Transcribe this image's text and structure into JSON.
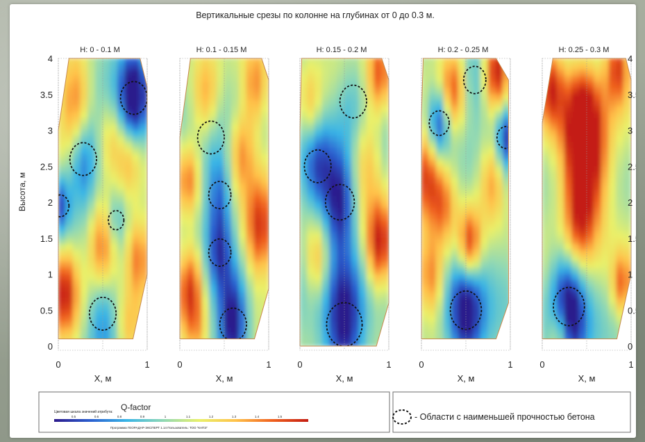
{
  "chart_data": {
    "type": "heatmap",
    "title": "Вертикальные срезы по колонне на глубинах от 0 до 0.3 м.",
    "xlabel": "X, м",
    "ylabel": "Высота, м",
    "xlim": [
      0,
      1
    ],
    "ylim": [
      0,
      4
    ],
    "x_ticks": [
      "0",
      "1"
    ],
    "y_ticks": [
      "0",
      "0.5",
      "1",
      "1.5",
      "2",
      "2.5",
      "3",
      "3.5",
      "4"
    ],
    "panels": [
      {
        "title": "H: 0 - 0.1 M",
        "anomalies": [
          {
            "x": 0.85,
            "y": 3.45,
            "v": -1.0,
            "r": 0.12
          },
          {
            "x": 0.28,
            "y": 2.6,
            "v": -0.7,
            "r": 0.12
          },
          {
            "x": 0.02,
            "y": 1.95,
            "v": -0.7,
            "r": 0.08
          },
          {
            "x": 0.5,
            "y": 0.45,
            "v": -0.5,
            "r": 0.12
          },
          {
            "x": 0.65,
            "y": 1.75,
            "v": -0.3,
            "r": 0.07
          },
          {
            "x": 0.2,
            "y": 3.35,
            "v": 0.75,
            "r": 0.13
          },
          {
            "x": 0.5,
            "y": 1.35,
            "v": 0.85,
            "r": 0.12
          },
          {
            "x": 0.08,
            "y": 0.75,
            "v": 0.85,
            "r": 0.11
          },
          {
            "x": 0.9,
            "y": 1.25,
            "v": 0.7,
            "r": 0.1
          },
          {
            "x": 0.8,
            "y": 2.6,
            "v": 0.45,
            "r": 0.1
          },
          {
            "x": 0.8,
            "y": 0.2,
            "v": 0.4,
            "r": 0.1
          },
          {
            "x": 0.6,
            "y": 2.9,
            "v": 0.35,
            "r": 0.1
          }
        ]
      },
      {
        "title": "H: 0.1 - 0.15 M",
        "anomalies": [
          {
            "x": 0.6,
            "y": 0.3,
            "v": -1.0,
            "r": 0.12
          },
          {
            "x": 0.45,
            "y": 1.3,
            "v": -0.55,
            "r": 0.1
          },
          {
            "x": 0.45,
            "y": 2.1,
            "v": -0.5,
            "r": 0.1
          },
          {
            "x": 0.35,
            "y": 2.9,
            "v": -0.3,
            "r": 0.12
          },
          {
            "x": 0.12,
            "y": 0.8,
            "v": 0.95,
            "r": 0.11
          },
          {
            "x": 0.9,
            "y": 1.6,
            "v": 0.85,
            "r": 0.12
          },
          {
            "x": 0.3,
            "y": 3.4,
            "v": 0.75,
            "r": 0.12
          },
          {
            "x": 0.85,
            "y": 3.6,
            "v": 0.55,
            "r": 0.1
          },
          {
            "x": 0.1,
            "y": 2.3,
            "v": 0.6,
            "r": 0.09
          },
          {
            "x": 0.7,
            "y": 2.7,
            "v": 0.5,
            "r": 0.1
          },
          {
            "x": 0.2,
            "y": 0.15,
            "v": 0.3,
            "r": 0.08
          }
        ]
      },
      {
        "title": "H: 0.15 - 0.2 M",
        "anomalies": [
          {
            "x": 0.5,
            "y": 0.3,
            "v": -1.0,
            "r": 0.16
          },
          {
            "x": 0.45,
            "y": 2.0,
            "v": -0.95,
            "r": 0.13
          },
          {
            "x": 0.2,
            "y": 2.5,
            "v": -0.6,
            "r": 0.12
          },
          {
            "x": 0.6,
            "y": 3.4,
            "v": -0.3,
            "r": 0.12
          },
          {
            "x": 0.9,
            "y": 1.4,
            "v": 1.0,
            "r": 0.11
          },
          {
            "x": 0.9,
            "y": 3.8,
            "v": 0.7,
            "r": 0.1
          },
          {
            "x": 0.75,
            "y": 2.6,
            "v": 0.45,
            "r": 0.12
          },
          {
            "x": 0.12,
            "y": 3.3,
            "v": 0.5,
            "r": 0.1
          },
          {
            "x": 0.2,
            "y": 1.2,
            "v": 0.55,
            "r": 0.1
          }
        ]
      },
      {
        "title": "H: 0.2 - 0.25 M",
        "anomalies": [
          {
            "x": 0.5,
            "y": 0.5,
            "v": -0.9,
            "r": 0.14
          },
          {
            "x": 0.2,
            "y": 3.1,
            "v": -0.8,
            "r": 0.09
          },
          {
            "x": 0.95,
            "y": 2.9,
            "v": -0.7,
            "r": 0.08
          },
          {
            "x": 0.6,
            "y": 3.7,
            "v": -0.3,
            "r": 0.1
          },
          {
            "x": 0.85,
            "y": 3.85,
            "v": 1.0,
            "r": 0.1
          },
          {
            "x": 0.05,
            "y": 2.4,
            "v": 0.85,
            "r": 0.11
          },
          {
            "x": 0.55,
            "y": 1.4,
            "v": 0.9,
            "r": 0.09
          },
          {
            "x": 0.35,
            "y": 3.55,
            "v": 0.65,
            "r": 0.1
          },
          {
            "x": 0.8,
            "y": 2.3,
            "v": 0.65,
            "r": 0.11
          },
          {
            "x": 0.25,
            "y": 2.0,
            "v": 0.55,
            "r": 0.1
          },
          {
            "x": 0.1,
            "y": 0.9,
            "v": 0.6,
            "r": 0.1
          }
        ]
      },
      {
        "title": "H: 0.25 - 0.3 M",
        "anomalies": [
          {
            "x": 0.3,
            "y": 0.55,
            "v": -1.0,
            "r": 0.14
          },
          {
            "x": 0.5,
            "y": 2.4,
            "v": 1.0,
            "r": 0.18
          },
          {
            "x": 0.45,
            "y": 3.1,
            "v": 0.9,
            "r": 0.16
          },
          {
            "x": 0.85,
            "y": 3.9,
            "v": 0.85,
            "r": 0.1
          },
          {
            "x": 0.1,
            "y": 3.6,
            "v": 0.8,
            "r": 0.1
          },
          {
            "x": 0.9,
            "y": 0.85,
            "v": 0.65,
            "r": 0.08
          },
          {
            "x": 0.2,
            "y": 0.15,
            "v": 0.55,
            "r": 0.08
          },
          {
            "x": 0.4,
            "y": 1.6,
            "v": 0.5,
            "r": 0.12
          }
        ]
      }
    ],
    "colorbar": {
      "label": "Q-factor",
      "caption": "Цветовая шкала значений атрибута:",
      "ticks": [
        "0.5",
        "0.6",
        "0.8",
        "0.9",
        "1",
        "1.1",
        "1.2",
        "1.3",
        "1.4",
        "1.5"
      ],
      "colors": [
        "#2c1a8c",
        "#2b5fd0",
        "#39b5e6",
        "#8fd8b5",
        "#e9f06a",
        "#ffc24a",
        "#f0621f",
        "#c41d12"
      ],
      "footer": "Программа ГЕОРАДАР-ЭКСПЕРТ 1.14  Пользователь: ТОО \"КАПЭ\""
    },
    "legend": {
      "text": "- Области с наименьшей прочностью бетона"
    }
  }
}
